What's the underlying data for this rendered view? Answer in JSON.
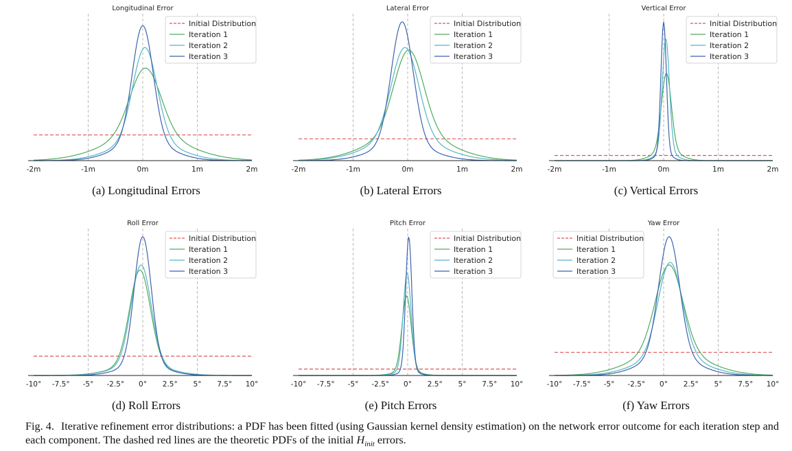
{
  "figure": {
    "caption_label": "Fig. 4.",
    "caption_main": "Iterative refinement error distributions: a PDF has been fitted (using Gaussian kernel density estimation) on the network error outcome for each iteration step and each component. The dashed red lines are the theoretic PDFs of the initial ",
    "caption_math": "H",
    "caption_math_sub": "init",
    "caption_end": " errors."
  },
  "colors": {
    "initial": "#dd5555",
    "iter1": "#4faa5f",
    "iter2": "#55b5c5",
    "iter3": "#3d62ae",
    "grid": "#b8b8b8",
    "axis": "#222222"
  },
  "chart_data": [
    {
      "type": "line",
      "title": "Longitudinal Error",
      "subcaption": "(a) Longitudinal Errors",
      "unit": "m",
      "xlim": [
        -2,
        2
      ],
      "xticks": [
        -2,
        -1,
        0,
        1,
        2
      ],
      "xtick_labels": [
        "-2m",
        "-1m",
        "0m",
        "1m",
        "2m"
      ],
      "grid_x": [
        -1,
        0,
        1
      ],
      "legend": [
        "Initial Distribution",
        "Iteration 1",
        "Iteration 2",
        "Iteration 3"
      ],
      "legend_position": "top-right",
      "initial_level": 0.2,
      "series": [
        {
          "name": "Iteration 1",
          "center": 0.05,
          "sigma": 0.28,
          "peak": 0.72,
          "tail": 0.28
        },
        {
          "name": "Iteration 2",
          "center": 0.04,
          "sigma": 0.22,
          "peak": 0.88,
          "tail": 0.18
        },
        {
          "name": "Iteration 3",
          "center": 0.0,
          "sigma": 0.19,
          "peak": 1.05,
          "tail": 0.14
        }
      ]
    },
    {
      "type": "line",
      "title": "Lateral Error",
      "subcaption": "(b) Lateral Errors",
      "unit": "m",
      "xlim": [
        -2,
        2
      ],
      "xticks": [
        -2,
        -1,
        0,
        1,
        2
      ],
      "xtick_labels": [
        "-2m",
        "-1m",
        "0m",
        "1m",
        "2m"
      ],
      "grid_x": [
        -1,
        0,
        1
      ],
      "legend": [
        "Initial Distribution",
        "Iteration 1",
        "Iteration 2",
        "Iteration 3"
      ],
      "legend_position": "top-right",
      "initial_level": 0.17,
      "series": [
        {
          "name": "Iteration 1",
          "center": 0.02,
          "sigma": 0.27,
          "peak": 0.86,
          "tail": 0.25
        },
        {
          "name": "Iteration 2",
          "center": -0.05,
          "sigma": 0.25,
          "peak": 0.88,
          "tail": 0.2
        },
        {
          "name": "Iteration 3",
          "center": -0.1,
          "sigma": 0.2,
          "peak": 1.08,
          "tail": 0.12
        }
      ]
    },
    {
      "type": "line",
      "title": "Vertical Error",
      "subcaption": "(c) Vertical Errors",
      "unit": "m",
      "xlim": [
        -2,
        2
      ],
      "xticks": [
        -2,
        -1,
        0,
        1,
        2
      ],
      "xtick_labels": [
        "-2m",
        "-1m",
        "0m",
        "1m",
        "2m"
      ],
      "grid_x": [
        -1,
        0,
        1
      ],
      "legend": [
        "Initial Distribution",
        "Iteration 1",
        "Iteration 2",
        "Iteration 3"
      ],
      "legend_position": "top-right",
      "initial_level": 0.04,
      "series": [
        {
          "name": "Iteration 1",
          "center": 0.05,
          "sigma": 0.09,
          "peak": 0.68,
          "tail": 0.12
        },
        {
          "name": "Iteration 2",
          "center": 0.04,
          "sigma": 0.065,
          "peak": 0.95,
          "tail": 0.08
        },
        {
          "name": "Iteration 3",
          "center": 0.0,
          "sigma": 0.05,
          "peak": 1.08,
          "tail": 0.06
        }
      ]
    },
    {
      "type": "line",
      "title": "Roll Error",
      "subcaption": "(d) Roll Errors",
      "unit": "deg",
      "xlim": [
        -10,
        10
      ],
      "xticks": [
        -10,
        -7.5,
        -5,
        -2.5,
        0,
        2.5,
        5,
        7.5,
        10
      ],
      "xtick_labels": [
        "-10°",
        "-7.5°",
        "-5°",
        "-2.5°",
        "0°",
        "2.5°",
        "5°",
        "7.5°",
        "10°"
      ],
      "grid_x": [
        -5,
        0,
        5
      ],
      "legend": [
        "Initial Distribution",
        "Iteration 1",
        "Iteration 2",
        "Iteration 3"
      ],
      "legend_position": "top-right",
      "initial_level": 0.15,
      "series": [
        {
          "name": "Iteration 1",
          "center": -0.25,
          "sigma": 0.95,
          "peak": 0.82,
          "tail": 0.1
        },
        {
          "name": "Iteration 2",
          "center": -0.15,
          "sigma": 0.92,
          "peak": 0.86,
          "tail": 0.1
        },
        {
          "name": "Iteration 3",
          "center": 0.0,
          "sigma": 0.78,
          "peak": 1.08,
          "tail": 0.08
        }
      ]
    },
    {
      "type": "line",
      "title": "Pitch Error",
      "subcaption": "(e) Pitch Errors",
      "unit": "deg",
      "xlim": [
        -10,
        10
      ],
      "xticks": [
        -10,
        -7.5,
        -5,
        -2.5,
        0,
        2.5,
        5,
        7.5,
        10
      ],
      "xtick_labels": [
        "-10°",
        "-7.5°",
        "-5°",
        "-2.5°",
        "0°",
        "2.5°",
        "5°",
        "7.5°",
        "10°"
      ],
      "grid_x": [
        -5,
        0,
        5
      ],
      "legend": [
        "Initial Distribution",
        "Iteration 1",
        "Iteration 2",
        "Iteration 3"
      ],
      "legend_position": "top-right",
      "initial_level": 0.05,
      "series": [
        {
          "name": "Iteration 1",
          "center": -0.1,
          "sigma": 0.42,
          "peak": 0.62,
          "tail": 0.06
        },
        {
          "name": "Iteration 2",
          "center": -0.05,
          "sigma": 0.36,
          "peak": 0.8,
          "tail": 0.05
        },
        {
          "name": "Iteration 3",
          "center": 0.1,
          "sigma": 0.28,
          "peak": 1.08,
          "tail": 0.04
        }
      ]
    },
    {
      "type": "line",
      "title": "Yaw Error",
      "subcaption": "(f) Yaw Errors",
      "unit": "deg",
      "xlim": [
        -10,
        10
      ],
      "xticks": [
        -10,
        -7.5,
        -5,
        -2.5,
        0,
        2.5,
        5,
        7.5,
        10
      ],
      "xtick_labels": [
        "-10°",
        "-7.5°",
        "-5°",
        "-2.5°",
        "0°",
        "2.5°",
        "5°",
        "7.5°",
        "10°"
      ],
      "grid_x": [
        -5,
        0,
        5
      ],
      "legend": [
        "Initial Distribution",
        "Iteration 1",
        "Iteration 2",
        "Iteration 3"
      ],
      "legend_position": "top-left",
      "initial_level": 0.18,
      "series": [
        {
          "name": "Iteration 1",
          "center": 0.5,
          "sigma": 1.25,
          "peak": 0.86,
          "tail": 0.22
        },
        {
          "name": "Iteration 2",
          "center": 0.6,
          "sigma": 1.1,
          "peak": 0.88,
          "tail": 0.18
        },
        {
          "name": "Iteration 3",
          "center": 0.5,
          "sigma": 0.95,
          "peak": 1.08,
          "tail": 0.14
        }
      ]
    }
  ]
}
